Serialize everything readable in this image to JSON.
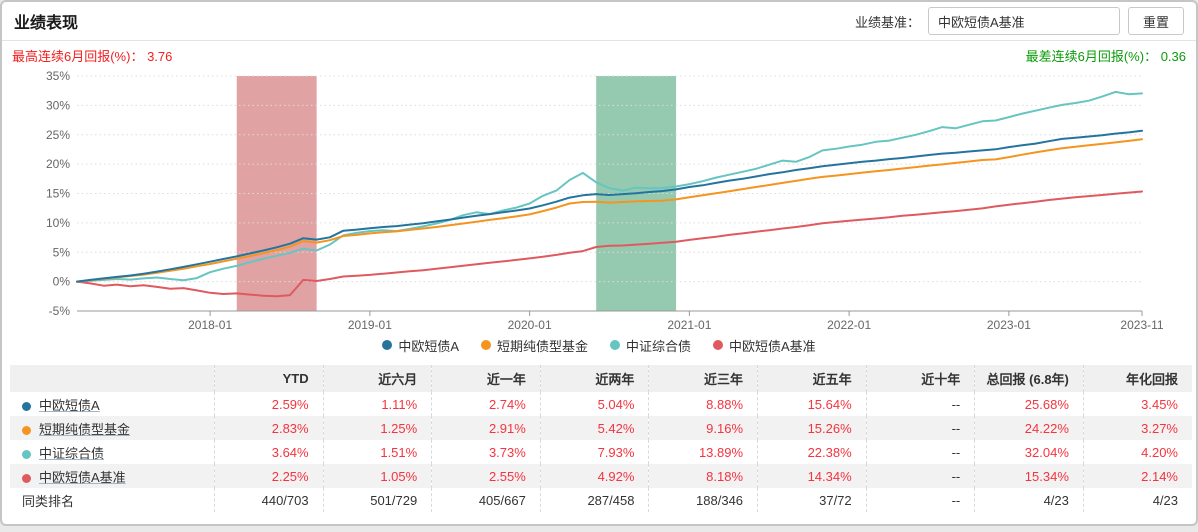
{
  "header": {
    "title": "业绩表现",
    "benchmark_label": "业绩基准：",
    "benchmark_value": "中欧短债A基准",
    "reset_label": "重置"
  },
  "annotations": {
    "best": {
      "label": "最高连续6月回报(%)： ",
      "value": "3.76",
      "color": "#f11f1f"
    },
    "worst": {
      "label": "最差连续6月回报(%)： ",
      "value": "0.36",
      "color": "#0a9c0a"
    }
  },
  "chart_data": {
    "type": "line",
    "x_start": "2017-03",
    "x_end": "2023-11",
    "interval": "monthly",
    "x_ticks": [
      "2018-01",
      "2019-01",
      "2020-01",
      "2021-01",
      "2022-01",
      "2023-01",
      "2023-11"
    ],
    "ylim": [
      -5,
      35
    ],
    "y_tick_step": 5,
    "y_tick_labels": [
      "-5%",
      "0%",
      "5%",
      "10%",
      "15%",
      "20%",
      "25%",
      "30%",
      "35%"
    ],
    "grid": "dotted-horizontal",
    "legend_position": "bottom-center",
    "axis_color": "#999999",
    "grid_color": "#dcdcdc",
    "tick_text_color": "#666666",
    "regions": [
      {
        "name": "最高连续6月回报区间",
        "from": "2018-03",
        "to": "2018-09",
        "color": "rgba(198,85,87,0.55)"
      },
      {
        "name": "最差连续6月回报区间",
        "from": "2020-06",
        "to": "2020-12",
        "color": "rgba(62,158,112,0.55)"
      }
    ],
    "series": [
      {
        "name": "中欧短债A",
        "color": "#24749d",
        "values": [
          0.0,
          0.3,
          0.55,
          0.8,
          1.05,
          1.35,
          1.7,
          2.1,
          2.5,
          2.95,
          3.4,
          3.85,
          4.3,
          4.8,
          5.3,
          5.85,
          6.45,
          7.4,
          7.15,
          7.55,
          8.66,
          8.85,
          9.1,
          9.3,
          9.45,
          9.7,
          9.95,
          10.25,
          10.55,
          10.9,
          11.2,
          11.5,
          11.8,
          12.1,
          12.45,
          13.0,
          13.6,
          14.3,
          14.7,
          14.9,
          14.75,
          14.9,
          15.05,
          15.25,
          15.43,
          15.7,
          16.1,
          16.4,
          16.8,
          17.2,
          17.5,
          17.9,
          18.3,
          18.6,
          19.0,
          19.3,
          19.65,
          19.9,
          20.15,
          20.4,
          20.6,
          20.85,
          21.05,
          21.3,
          21.55,
          21.8,
          21.95,
          22.15,
          22.33,
          22.52,
          22.9,
          23.2,
          23.5,
          23.9,
          24.3,
          24.5,
          24.7,
          24.9,
          25.2,
          25.4,
          25.68
        ]
      },
      {
        "name": "短期纯债型基金",
        "color": "#f5941f",
        "values": [
          0.0,
          0.25,
          0.5,
          0.72,
          0.95,
          1.2,
          1.5,
          1.85,
          2.2,
          2.6,
          3.0,
          3.45,
          3.9,
          4.35,
          4.85,
          5.35,
          5.95,
          6.9,
          6.65,
          7.05,
          7.77,
          7.95,
          8.2,
          8.4,
          8.55,
          8.8,
          9.05,
          9.3,
          9.6,
          9.9,
          10.2,
          10.5,
          10.8,
          11.1,
          11.45,
          12.0,
          12.6,
          13.3,
          13.55,
          13.6,
          13.45,
          13.55,
          13.65,
          13.72,
          13.79,
          14.0,
          14.35,
          14.7,
          15.05,
          15.4,
          15.75,
          16.1,
          16.45,
          16.8,
          17.15,
          17.5,
          17.83,
          18.05,
          18.3,
          18.55,
          18.8,
          19.0,
          19.25,
          19.5,
          19.75,
          19.95,
          20.2,
          20.45,
          20.71,
          20.8,
          21.2,
          21.6,
          22.0,
          22.35,
          22.69,
          22.95,
          23.2,
          23.45,
          23.7,
          23.95,
          24.22
        ]
      },
      {
        "name": "中证综合债",
        "color": "#66c5c1",
        "values": [
          0.0,
          0.15,
          0.3,
          0.45,
          0.35,
          0.55,
          0.7,
          0.45,
          0.25,
          0.6,
          1.6,
          2.2,
          2.7,
          3.3,
          3.9,
          4.4,
          4.9,
          5.6,
          5.3,
          6.3,
          7.89,
          8.3,
          8.6,
          8.75,
          8.6,
          9.0,
          9.4,
          9.9,
          10.5,
          11.3,
          11.8,
          11.5,
          12.1,
          12.6,
          13.3,
          14.6,
          15.5,
          17.3,
          18.5,
          16.9,
          15.9,
          15.5,
          16.0,
          15.9,
          15.94,
          16.2,
          16.6,
          17.1,
          17.7,
          18.2,
          18.7,
          19.2,
          19.9,
          20.6,
          20.4,
          21.2,
          22.34,
          22.6,
          23.0,
          23.3,
          23.8,
          24.0,
          24.5,
          25.0,
          25.6,
          26.3,
          26.1,
          26.7,
          27.29,
          27.42,
          28.0,
          28.6,
          29.1,
          29.6,
          30.08,
          30.4,
          30.8,
          31.5,
          32.3,
          31.9,
          32.04
        ]
      },
      {
        "name": "中欧短债A基准",
        "color": "#df5a5f",
        "values": [
          0.0,
          -0.3,
          -0.7,
          -0.5,
          -0.8,
          -0.6,
          -0.9,
          -1.2,
          -1.1,
          -1.5,
          -1.9,
          -2.1,
          -2.0,
          -2.2,
          -2.4,
          -2.5,
          -2.3,
          0.3,
          0.1,
          0.45,
          0.87,
          1.0,
          1.15,
          1.35,
          1.55,
          1.75,
          1.95,
          2.2,
          2.45,
          2.7,
          2.95,
          3.2,
          3.45,
          3.7,
          3.95,
          4.25,
          4.55,
          4.9,
          5.2,
          5.9,
          6.1,
          6.15,
          6.3,
          6.45,
          6.62,
          6.8,
          7.1,
          7.4,
          7.65,
          7.95,
          8.2,
          8.5,
          8.75,
          9.05,
          9.3,
          9.6,
          9.93,
          10.15,
          10.35,
          10.55,
          10.75,
          10.95,
          11.2,
          11.4,
          11.6,
          11.8,
          12.0,
          12.25,
          12.47,
          12.8,
          13.1,
          13.35,
          13.6,
          13.9,
          14.14,
          14.35,
          14.55,
          14.75,
          14.95,
          15.15,
          15.34
        ]
      }
    ]
  },
  "table": {
    "columns": [
      "",
      "YTD",
      "近六月",
      "近一年",
      "近两年",
      "近三年",
      "近五年",
      "近十年",
      "总回报 (6.8年)",
      "年化回报"
    ],
    "rows": [
      {
        "label": "中欧短债A",
        "dot_color": "#24749d",
        "link": true,
        "red_values": true,
        "values": [
          "2.59%",
          "1.11%",
          "2.74%",
          "5.04%",
          "8.88%",
          "15.64%",
          "--",
          "25.68%",
          "3.45%"
        ]
      },
      {
        "label": "短期纯债型基金",
        "dot_color": "#f5941f",
        "link": true,
        "red_values": true,
        "values": [
          "2.83%",
          "1.25%",
          "2.91%",
          "5.42%",
          "9.16%",
          "15.26%",
          "--",
          "24.22%",
          "3.27%"
        ]
      },
      {
        "label": "中证综合债",
        "dot_color": "#66c5c1",
        "link": true,
        "red_values": true,
        "values": [
          "3.64%",
          "1.51%",
          "3.73%",
          "7.93%",
          "13.89%",
          "22.38%",
          "--",
          "32.04%",
          "4.20%"
        ]
      },
      {
        "label": "中欧短债A基准",
        "dot_color": "#df5a5f",
        "link": true,
        "red_values": true,
        "values": [
          "2.25%",
          "1.05%",
          "2.55%",
          "4.92%",
          "8.18%",
          "14.34%",
          "--",
          "15.34%",
          "2.14%"
        ]
      },
      {
        "label": "同类排名",
        "dot_color": null,
        "link": false,
        "red_values": false,
        "values": [
          "440/703",
          "501/729",
          "405/667",
          "287/458",
          "188/346",
          "37/72",
          "--",
          "4/23",
          "4/23"
        ]
      }
    ]
  }
}
